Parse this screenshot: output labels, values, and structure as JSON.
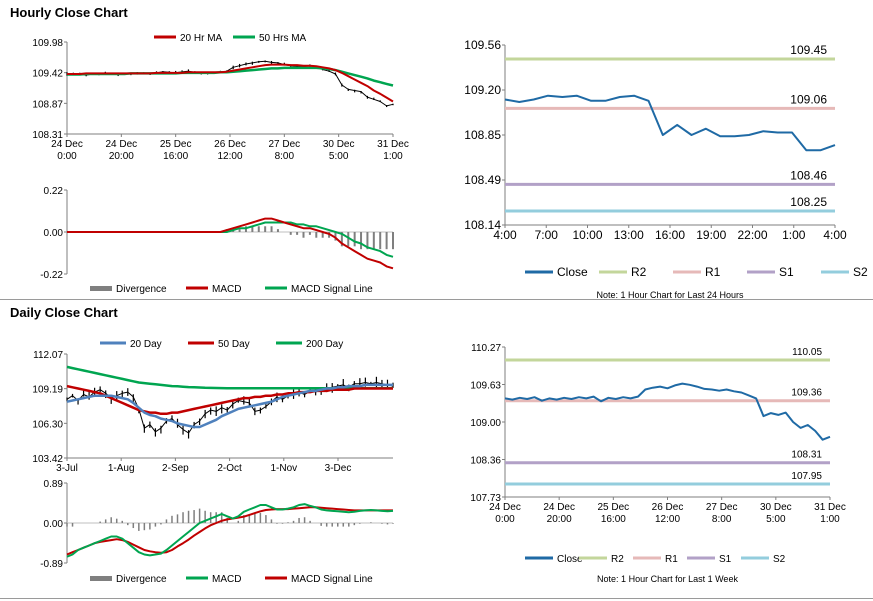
{
  "sections": {
    "hourly_title": "Hourly Close Chart",
    "daily_title": "Daily Close Chart"
  },
  "colors": {
    "close": "#1f6aa5",
    "ma20": "#c00000",
    "ma50": "#00a550",
    "ma200": "#00a550",
    "ma20d": "#4f81bd",
    "macd_red": "#c00000",
    "macd_green": "#00a550",
    "divergence": "#7f7f7f",
    "price_bar": "#000000",
    "r2": "#c3d69b",
    "r1": "#e6b9b8",
    "s1": "#b2a1c7",
    "s2": "#93cddd"
  },
  "chart_data": [
    {
      "id": "hourly_price",
      "type": "line",
      "title": "Hourly Close Chart",
      "legend": [
        "20 Hr MA",
        "50 Hrs MA"
      ],
      "ylim": [
        108.31,
        109.98
      ],
      "yticks": [
        "109.98",
        "109.42",
        "108.87",
        "108.31"
      ],
      "xticks": [
        [
          "24 Dec",
          "0:00"
        ],
        [
          "24 Dec",
          "20:00"
        ],
        [
          "25 Dec",
          "16:00"
        ],
        [
          "26 Dec",
          "12:00"
        ],
        [
          "27 Dec",
          "8:00"
        ],
        [
          "30 Dec",
          "5:00"
        ],
        [
          "31 Dec",
          "1:00"
        ]
      ],
      "price": [
        109.4,
        109.41,
        109.39,
        109.38,
        109.4,
        109.41,
        109.42,
        109.4,
        109.39,
        109.4,
        109.41,
        109.42,
        109.41,
        109.4,
        109.42,
        109.44,
        109.43,
        109.42,
        109.44,
        109.45,
        109.43,
        109.42,
        109.41,
        109.42,
        109.43,
        109.45,
        109.52,
        109.55,
        109.58,
        109.6,
        109.62,
        109.63,
        109.61,
        109.6,
        109.57,
        109.55,
        109.54,
        109.53,
        109.55,
        109.52,
        109.48,
        109.45,
        109.4,
        109.2,
        109.12,
        109.1,
        109.08,
        108.98,
        108.94,
        108.9,
        108.82,
        108.85
      ],
      "ma20": [
        109.4,
        109.4,
        109.4,
        109.41,
        109.41,
        109.41,
        109.41,
        109.41,
        109.41,
        109.41,
        109.41,
        109.41,
        109.41,
        109.41,
        109.42,
        109.42,
        109.42,
        109.42,
        109.42,
        109.43,
        109.43,
        109.43,
        109.43,
        109.43,
        109.43,
        109.44,
        109.46,
        109.48,
        109.5,
        109.52,
        109.54,
        109.56,
        109.57,
        109.57,
        109.57,
        109.56,
        109.56,
        109.55,
        109.55,
        109.54,
        109.52,
        109.5,
        109.47,
        109.42,
        109.36,
        109.3,
        109.24,
        109.18,
        109.1,
        109.04,
        108.97,
        108.9
      ],
      "ma50": [
        109.39,
        109.39,
        109.39,
        109.4,
        109.4,
        109.4,
        109.4,
        109.4,
        109.4,
        109.4,
        109.41,
        109.41,
        109.41,
        109.41,
        109.41,
        109.41,
        109.41,
        109.41,
        109.42,
        109.42,
        109.42,
        109.42,
        109.42,
        109.42,
        109.43,
        109.43,
        109.44,
        109.45,
        109.46,
        109.47,
        109.48,
        109.49,
        109.5,
        109.5,
        109.51,
        109.51,
        109.51,
        109.51,
        109.51,
        109.51,
        109.5,
        109.49,
        109.47,
        109.44,
        109.41,
        109.38,
        109.35,
        109.32,
        109.28,
        109.25,
        109.22,
        109.19
      ]
    },
    {
      "id": "hourly_macd",
      "type": "line",
      "legend": [
        "Divergence",
        "MACD",
        "MACD Signal Line"
      ],
      "ylim": [
        -0.22,
        0.22
      ],
      "yticks": [
        "0.22",
        "0.00",
        "-0.22"
      ],
      "macd": [
        0,
        0,
        0,
        0,
        0,
        0,
        0,
        0,
        0,
        0,
        0,
        0,
        0,
        0,
        0,
        0,
        0,
        0,
        0,
        0,
        0,
        0,
        0,
        0,
        0,
        0.01,
        0.02,
        0.03,
        0.04,
        0.05,
        0.06,
        0.07,
        0.07,
        0.06,
        0.05,
        0.04,
        0.03,
        0.02,
        0.02,
        0.01,
        0,
        -0.01,
        -0.03,
        -0.06,
        -0.08,
        -0.1,
        -0.12,
        -0.14,
        -0.15,
        -0.16,
        -0.18,
        -0.19
      ],
      "signal": [
        0,
        0,
        0,
        0,
        0,
        0,
        0,
        0,
        0,
        0,
        0,
        0,
        0,
        0,
        0,
        0,
        0,
        0,
        0,
        0,
        0,
        0,
        0,
        0,
        0,
        0,
        0.01,
        0.02,
        0.02,
        0.03,
        0.04,
        0.05,
        0.05,
        0.05,
        0.05,
        0.05,
        0.04,
        0.04,
        0.03,
        0.03,
        0.02,
        0.01,
        0,
        -0.01,
        -0.03,
        -0.05,
        -0.06,
        -0.08,
        -0.09,
        -0.1,
        -0.12,
        -0.13
      ]
    },
    {
      "id": "hourly_sr",
      "type": "line",
      "note": "Note: 1 Hour Chart for Last 24 Hours",
      "legend": [
        "Close",
        "R2",
        "R1",
        "S1",
        "S2"
      ],
      "ylim": [
        108.14,
        109.56
      ],
      "yticks": [
        "109.56",
        "109.20",
        "108.85",
        "108.49",
        "108.14"
      ],
      "xticks": [
        "4:00",
        "7:00",
        "10:00",
        "13:00",
        "16:00",
        "19:00",
        "22:00",
        "1:00",
        "4:00"
      ],
      "levels": {
        "R2": 109.45,
        "R1": 109.06,
        "S1": 108.46,
        "S2": 108.25
      },
      "level_labels": {
        "R2": "109.45",
        "R1": "109.06",
        "S1": "108.46",
        "S2": "108.25"
      },
      "close": [
        109.13,
        109.11,
        109.13,
        109.16,
        109.15,
        109.16,
        109.12,
        109.12,
        109.15,
        109.16,
        109.12,
        108.85,
        108.93,
        108.85,
        108.9,
        108.84,
        108.84,
        108.85,
        108.88,
        108.87,
        108.87,
        108.73,
        108.73,
        108.77
      ]
    },
    {
      "id": "daily_price",
      "type": "line",
      "title": "Daily Close Chart",
      "legend": [
        "20 Day",
        "50 Day",
        "200 Day"
      ],
      "ylim": [
        103.42,
        112.07
      ],
      "yticks": [
        "112.07",
        "109.19",
        "106.30",
        "103.42"
      ],
      "xticks": [
        "3-Jul",
        "1-Aug",
        "2-Sep",
        "2-Oct",
        "1-Nov",
        "3-Dec"
      ],
      "price": [
        108.3,
        108.6,
        108.2,
        108.7,
        108.5,
        108.9,
        109.1,
        108.8,
        108.4,
        108.6,
        108.8,
        108.9,
        108.5,
        107.5,
        105.9,
        106.2,
        105.6,
        105.9,
        106.5,
        106.7,
        106.2,
        105.8,
        105.5,
        106.2,
        106.5,
        107.1,
        107.4,
        107.3,
        107.6,
        107.4,
        107.9,
        108.2,
        108.1,
        108.0,
        107.3,
        107.4,
        107.7,
        108.1,
        108.5,
        108.3,
        108.6,
        108.8,
        108.9,
        108.7,
        109.0,
        108.9,
        109.1,
        109.2,
        109.3,
        109.4,
        109.5,
        109.3,
        109.6,
        109.6,
        109.7,
        109.6,
        109.7,
        109.6,
        109.5,
        109.4
      ],
      "ma20": [
        108.1,
        108.2,
        108.3,
        108.4,
        108.5,
        108.6,
        108.6,
        108.6,
        108.6,
        108.5,
        108.4,
        108.3,
        108.0,
        107.6,
        107.2,
        107.0,
        106.9,
        106.7,
        106.6,
        106.5,
        106.3,
        106.2,
        106.1,
        106.0,
        106.0,
        106.2,
        106.4,
        106.6,
        106.9,
        107.1,
        107.3,
        107.5,
        107.6,
        107.7,
        107.8,
        107.9,
        108.0,
        108.1,
        108.3,
        108.5,
        108.6,
        108.7,
        108.8,
        108.9,
        109.0,
        109.0,
        109.1,
        109.2,
        109.2,
        109.3,
        109.3,
        109.4,
        109.4,
        109.4,
        109.5,
        109.5,
        109.5,
        109.5,
        109.5,
        109.5
      ],
      "ma50": [
        109.4,
        109.3,
        109.2,
        109.1,
        109.0,
        108.9,
        108.8,
        108.6,
        108.4,
        108.2,
        108.0,
        107.8,
        107.6,
        107.4,
        107.3,
        107.2,
        107.2,
        107.1,
        107.1,
        107.2,
        107.2,
        107.3,
        107.4,
        107.5,
        107.6,
        107.7,
        107.8,
        107.9,
        108.0,
        108.1,
        108.2,
        108.3,
        108.4,
        108.4,
        108.5,
        108.5,
        108.6,
        108.6,
        108.7,
        108.7,
        108.8,
        108.8,
        108.9,
        108.9,
        108.9,
        109.0,
        109.0,
        109.0,
        109.1,
        109.1,
        109.1,
        109.1,
        109.2,
        109.2,
        109.2,
        109.2,
        109.2,
        109.2,
        109.2,
        109.2
      ],
      "ma200": [
        111.0,
        110.9,
        110.8,
        110.7,
        110.6,
        110.5,
        110.4,
        110.3,
        110.2,
        110.1,
        110.0,
        109.9,
        109.8,
        109.7,
        109.65,
        109.6,
        109.55,
        109.5,
        109.45,
        109.4,
        109.38,
        109.35,
        109.32,
        109.3,
        109.28,
        109.26,
        109.25,
        109.24,
        109.23,
        109.22,
        109.22,
        109.22,
        109.22,
        109.22,
        109.22,
        109.22,
        109.22,
        109.22,
        109.22,
        109.22,
        109.22,
        109.22,
        109.22,
        109.22,
        109.22,
        109.22,
        109.22,
        109.22,
        109.22,
        109.22,
        109.22,
        109.22,
        109.22,
        109.22,
        109.22,
        109.22,
        109.22,
        109.22,
        109.22,
        109.22
      ]
    },
    {
      "id": "daily_macd",
      "type": "line",
      "legend": [
        "Divergence",
        "MACD",
        "MACD Signal Line"
      ],
      "ylim": [
        -0.89,
        0.89
      ],
      "yticks": [
        "0.89",
        "0.00",
        "-0.89"
      ],
      "macd": [
        -0.75,
        -0.7,
        -0.6,
        -0.55,
        -0.5,
        -0.45,
        -0.4,
        -0.35,
        -0.3,
        -0.3,
        -0.35,
        -0.45,
        -0.55,
        -0.65,
        -0.7,
        -0.72,
        -0.7,
        -0.68,
        -0.6,
        -0.5,
        -0.4,
        -0.3,
        -0.2,
        -0.1,
        0,
        0.05,
        0.1,
        0.15,
        0.2,
        0.15,
        0.1,
        0.15,
        0.25,
        0.3,
        0.35,
        0.4,
        0.4,
        0.35,
        0.3,
        0.3,
        0.32,
        0.35,
        0.4,
        0.42,
        0.38,
        0.35,
        0.3,
        0.28,
        0.27,
        0.26,
        0.25,
        0.24,
        0.25,
        0.27,
        0.28,
        0.29,
        0.28,
        0.27,
        0.26,
        0.27
      ],
      "signal": [
        -0.7,
        -0.65,
        -0.6,
        -0.55,
        -0.5,
        -0.45,
        -0.42,
        -0.4,
        -0.38,
        -0.36,
        -0.38,
        -0.42,
        -0.48,
        -0.54,
        -0.6,
        -0.63,
        -0.65,
        -0.66,
        -0.65,
        -0.6,
        -0.52,
        -0.45,
        -0.37,
        -0.28,
        -0.2,
        -0.12,
        -0.05,
        0,
        0.05,
        0.08,
        0.1,
        0.12,
        0.14,
        0.18,
        0.22,
        0.26,
        0.29,
        0.3,
        0.31,
        0.31,
        0.31,
        0.32,
        0.33,
        0.34,
        0.35,
        0.35,
        0.34,
        0.33,
        0.32,
        0.31,
        0.3,
        0.29,
        0.28,
        0.28,
        0.28,
        0.28,
        0.28,
        0.28,
        0.28,
        0.28
      ]
    },
    {
      "id": "daily_sr",
      "type": "line",
      "note": "Note: 1 Hour Chart for Last 1 Week",
      "legend": [
        "Close",
        "R2",
        "R1",
        "S1",
        "S2"
      ],
      "ylim": [
        107.73,
        110.27
      ],
      "yticks": [
        "110.27",
        "109.63",
        "109.00",
        "108.36",
        "107.73"
      ],
      "xticks": [
        [
          "24 Dec",
          "0:00"
        ],
        [
          "24 Dec",
          "20:00"
        ],
        [
          "25 Dec",
          "16:00"
        ],
        [
          "26 Dec",
          "12:00"
        ],
        [
          "27 Dec",
          "8:00"
        ],
        [
          "30 Dec",
          "5:00"
        ],
        [
          "31 Dec",
          "1:00"
        ]
      ],
      "levels": {
        "R2": 110.05,
        "R1": 109.36,
        "S1": 108.31,
        "S2": 107.95
      },
      "level_labels": {
        "R2": "110.05",
        "R1": "109.36",
        "S1": "108.31",
        "S2": "107.95"
      },
      "close": [
        109.4,
        109.38,
        109.41,
        109.39,
        109.42,
        109.36,
        109.4,
        109.38,
        109.41,
        109.39,
        109.42,
        109.4,
        109.43,
        109.35,
        109.41,
        109.39,
        109.42,
        109.4,
        109.43,
        109.55,
        109.58,
        109.6,
        109.57,
        109.62,
        109.65,
        109.63,
        109.6,
        109.56,
        109.55,
        109.53,
        109.55,
        109.52,
        109.5,
        109.45,
        109.4,
        109.1,
        109.15,
        109.12,
        109.16,
        109.0,
        108.9,
        108.95,
        108.85,
        108.7,
        108.75
      ]
    }
  ]
}
